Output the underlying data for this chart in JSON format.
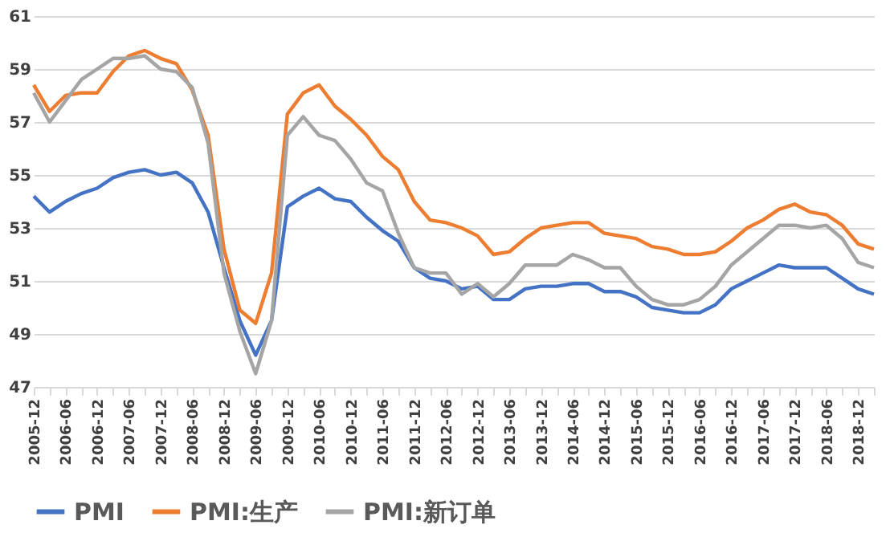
{
  "chart_data": {
    "type": "line",
    "categories": [
      "2005-12",
      null,
      "2006-06",
      null,
      "2006-12",
      null,
      "2007-06",
      null,
      "2007-12",
      null,
      "2008-06",
      null,
      "2008-12",
      null,
      "2009-06",
      null,
      "2009-12",
      null,
      "2010-06",
      null,
      "2010-12",
      null,
      "2011-06",
      null,
      "2011-12",
      null,
      "2012-06",
      null,
      "2012-12",
      null,
      "2013-06",
      null,
      "2013-12",
      null,
      "2014-06",
      null,
      "2014-12",
      null,
      "2015-06",
      null,
      "2015-12",
      null,
      "2016-06",
      null,
      "2016-12",
      null,
      "2017-06",
      null,
      "2017-12",
      null,
      "2018-06",
      null,
      "2018-12",
      null
    ],
    "series": [
      {
        "name": "PMI",
        "color": "#4472c4",
        "values": [
          54.2,
          53.6,
          54.0,
          54.3,
          54.5,
          54.9,
          55.1,
          55.2,
          55.0,
          55.1,
          54.7,
          53.6,
          51.5,
          49.5,
          48.2,
          49.5,
          53.8,
          54.2,
          54.5,
          54.1,
          54.0,
          53.4,
          52.9,
          52.5,
          51.5,
          51.1,
          51.0,
          50.7,
          50.8,
          50.3,
          50.3,
          50.7,
          50.8,
          50.8,
          50.9,
          50.9,
          50.6,
          50.6,
          50.4,
          50.0,
          49.9,
          49.8,
          49.8,
          50.1,
          50.7,
          51.0,
          51.3,
          51.6,
          51.5,
          51.5,
          51.5,
          51.1,
          50.7,
          50.5
        ]
      },
      {
        "name": "PMI:生产",
        "color": "#ed7d31",
        "values": [
          58.4,
          57.4,
          58.0,
          58.1,
          58.1,
          58.9,
          59.5,
          59.7,
          59.4,
          59.2,
          58.2,
          56.5,
          52.2,
          49.9,
          49.4,
          51.3,
          57.3,
          58.1,
          58.4,
          57.6,
          57.1,
          56.5,
          55.7,
          55.2,
          54.0,
          53.3,
          53.2,
          53.0,
          52.7,
          52.0,
          52.1,
          52.6,
          53.0,
          53.1,
          53.2,
          53.2,
          52.8,
          52.7,
          52.6,
          52.3,
          52.2,
          52.0,
          52.0,
          52.1,
          52.5,
          53.0,
          53.3,
          53.7,
          53.9,
          53.6,
          53.5,
          53.1,
          52.4,
          52.2
        ]
      },
      {
        "name": "PMI:新订单",
        "color": "#a5a5a5",
        "values": [
          58.1,
          57.0,
          57.8,
          58.6,
          59.0,
          59.4,
          59.4,
          59.5,
          59.0,
          58.9,
          58.3,
          56.2,
          51.3,
          49.1,
          47.5,
          49.5,
          56.5,
          57.2,
          56.5,
          56.3,
          55.6,
          54.7,
          54.4,
          52.8,
          51.5,
          51.3,
          51.3,
          50.5,
          50.9,
          50.4,
          50.9,
          51.6,
          51.6,
          51.6,
          52.0,
          51.8,
          51.5,
          51.5,
          50.8,
          50.3,
          50.1,
          50.1,
          50.3,
          50.8,
          51.6,
          52.1,
          52.6,
          53.1,
          53.1,
          53.0,
          53.1,
          52.6,
          51.7,
          51.5
        ]
      }
    ],
    "ylim": [
      47,
      61
    ],
    "yticks": [
      47,
      49,
      51,
      53,
      55,
      57,
      59,
      61
    ],
    "grid": "y",
    "legend": "bottom",
    "marker": "none",
    "line_style": "solid"
  }
}
